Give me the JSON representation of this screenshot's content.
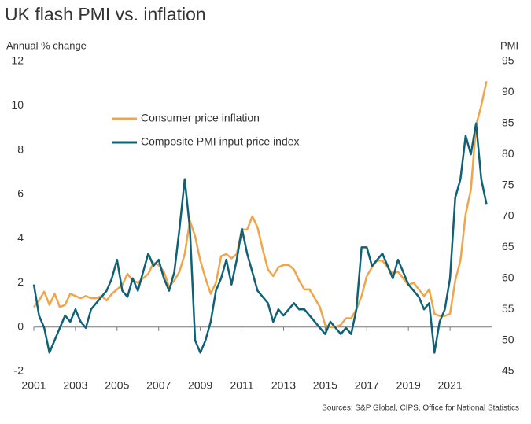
{
  "chart_data": {
    "type": "line",
    "title": "UK flash PMI vs. inflation",
    "y_label": "Annual % change",
    "y2_label": "PMI",
    "source": "Sources: S&P Global, CIPS, Office for National Statistics",
    "x": [
      2001,
      2001.25,
      2001.5,
      2001.75,
      2002,
      2002.25,
      2002.5,
      2002.75,
      2003,
      2003.25,
      2003.5,
      2003.75,
      2004,
      2004.25,
      2004.5,
      2004.75,
      2005,
      2005.25,
      2005.5,
      2005.75,
      2006,
      2006.25,
      2006.5,
      2006.75,
      2007,
      2007.25,
      2007.5,
      2007.75,
      2008,
      2008.25,
      2008.5,
      2008.75,
      2009,
      2009.25,
      2009.5,
      2009.75,
      2010,
      2010.25,
      2010.5,
      2010.75,
      2011,
      2011.25,
      2011.5,
      2011.75,
      2012,
      2012.25,
      2012.5,
      2012.75,
      2013,
      2013.25,
      2013.5,
      2013.75,
      2014,
      2014.25,
      2014.5,
      2014.75,
      2015,
      2015.25,
      2015.5,
      2015.75,
      2016,
      2016.25,
      2016.5,
      2016.75,
      2017,
      2017.25,
      2017.5,
      2017.75,
      2018,
      2018.25,
      2018.5,
      2018.75,
      2019,
      2019.25,
      2019.5,
      2019.75,
      2020,
      2020.25,
      2020.5,
      2020.75,
      2021,
      2021.25,
      2021.5,
      2021.75,
      2022,
      2022.25,
      2022.5,
      2022.75
    ],
    "series": [
      {
        "name": "Consumer price inflation",
        "color": "#f0a54a",
        "axis": "y",
        "values": [
          0.9,
          1.2,
          1.6,
          1.0,
          1.5,
          0.9,
          1.0,
          1.5,
          1.4,
          1.3,
          1.4,
          1.3,
          1.3,
          1.4,
          1.2,
          1.5,
          1.7,
          1.9,
          2.4,
          2.1,
          2.0,
          2.2,
          2.4,
          2.9,
          2.8,
          2.5,
          1.8,
          2.1,
          2.5,
          3.3,
          4.8,
          4.1,
          3.0,
          2.2,
          1.5,
          2.0,
          3.2,
          3.3,
          3.1,
          3.3,
          4.4,
          4.4,
          5.0,
          4.5,
          3.5,
          2.6,
          2.3,
          2.7,
          2.8,
          2.8,
          2.6,
          2.1,
          1.7,
          1.7,
          1.3,
          0.9,
          0.1,
          0.0,
          0.0,
          0.1,
          0.4,
          0.4,
          0.8,
          1.4,
          2.3,
          2.7,
          3.0,
          3.0,
          2.7,
          2.4,
          2.5,
          2.2,
          1.9,
          2.0,
          1.7,
          1.4,
          1.7,
          0.6,
          0.5,
          0.5,
          0.6,
          2.1,
          3.0,
          5.1,
          6.2,
          9.1,
          10.0,
          11.1
        ]
      },
      {
        "name": "Composite PMI input price index",
        "color": "#0e6177",
        "axis": "y2",
        "values": [
          59,
          54,
          52,
          48,
          50,
          52,
          54,
          53,
          55,
          53,
          52,
          55,
          56,
          57,
          58,
          60,
          63,
          58,
          57,
          60,
          58,
          61,
          64,
          62,
          63,
          60,
          58,
          61,
          68,
          76,
          68,
          50,
          48,
          50,
          53,
          58,
          60,
          63,
          59,
          63,
          68,
          64,
          61,
          58,
          57,
          56,
          53,
          55,
          54,
          55,
          56,
          55,
          55,
          54,
          53,
          52,
          51,
          53,
          52,
          51,
          52,
          51,
          55,
          65,
          65,
          62,
          63,
          64,
          62,
          60,
          63,
          61,
          59,
          58,
          57,
          55,
          56,
          48,
          53,
          55,
          60,
          73,
          76,
          83,
          80,
          85,
          76,
          72
        ]
      }
    ],
    "xlim": [
      2001,
      2023
    ],
    "xticks": [
      2001,
      2003,
      2005,
      2007,
      2009,
      2011,
      2013,
      2015,
      2017,
      2019,
      2021
    ],
    "ylim": [
      -2,
      12
    ],
    "yticks": [
      -2,
      0,
      2,
      4,
      6,
      8,
      10,
      12
    ],
    "y2lim": [
      45,
      95
    ],
    "y2ticks": [
      45,
      50,
      55,
      60,
      65,
      70,
      75,
      80,
      85,
      90,
      95
    ]
  }
}
